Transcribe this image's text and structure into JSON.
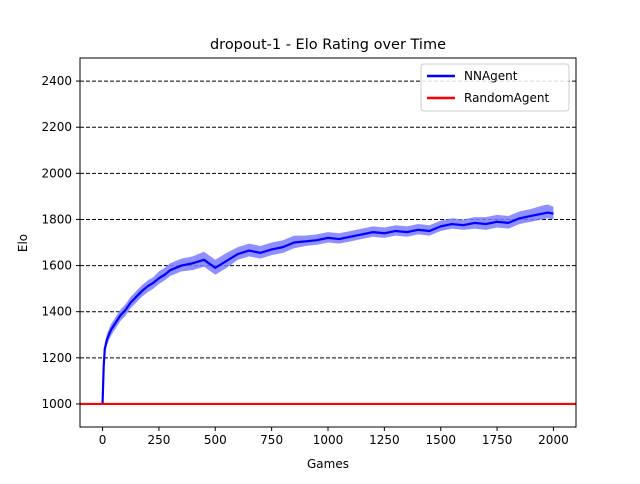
{
  "chart_data": {
    "type": "line",
    "title": "dropout-1 - Elo Rating over Time",
    "xlabel": "Games",
    "ylabel": "Elo",
    "xlim": [
      -100,
      2100
    ],
    "ylim": [
      900,
      2500
    ],
    "xticks": [
      0,
      250,
      500,
      750,
      1000,
      1250,
      1500,
      1750,
      2000
    ],
    "yticks": [
      1000,
      1200,
      1400,
      1600,
      1800,
      2000,
      2200,
      2400
    ],
    "grid": "horizontal dashed",
    "legend_position": "top-right",
    "series": [
      {
        "name": "NNAgent",
        "color": "#0000ff",
        "band_color": "#7b7bff",
        "x": [
          0,
          5,
          10,
          20,
          30,
          40,
          50,
          60,
          80,
          100,
          125,
          150,
          175,
          200,
          225,
          250,
          275,
          300,
          350,
          400,
          450,
          500,
          550,
          600,
          650,
          700,
          750,
          800,
          850,
          900,
          950,
          1000,
          1050,
          1100,
          1150,
          1200,
          1250,
          1300,
          1350,
          1400,
          1450,
          1500,
          1550,
          1600,
          1650,
          1700,
          1750,
          1800,
          1850,
          1900,
          1950,
          1975,
          2000
        ],
        "y": [
          1000,
          1160,
          1240,
          1280,
          1305,
          1325,
          1340,
          1355,
          1385,
          1405,
          1440,
          1465,
          1490,
          1510,
          1525,
          1545,
          1560,
          1580,
          1600,
          1610,
          1625,
          1590,
          1620,
          1650,
          1665,
          1655,
          1670,
          1680,
          1700,
          1705,
          1710,
          1720,
          1715,
          1725,
          1735,
          1745,
          1740,
          1750,
          1745,
          1755,
          1750,
          1770,
          1780,
          1775,
          1785,
          1780,
          1790,
          1785,
          1805,
          1815,
          1825,
          1830,
          1825
        ],
        "lower": [
          1000,
          1130,
          1215,
          1255,
          1280,
          1300,
          1315,
          1330,
          1360,
          1380,
          1415,
          1440,
          1465,
          1485,
          1500,
          1520,
          1535,
          1555,
          1575,
          1580,
          1595,
          1560,
          1590,
          1625,
          1640,
          1630,
          1645,
          1655,
          1675,
          1685,
          1690,
          1700,
          1695,
          1705,
          1715,
          1725,
          1720,
          1730,
          1725,
          1735,
          1730,
          1750,
          1760,
          1755,
          1760,
          1755,
          1765,
          1760,
          1780,
          1790,
          1800,
          1805,
          1800
        ],
        "upper": [
          1000,
          1190,
          1265,
          1305,
          1330,
          1350,
          1365,
          1380,
          1410,
          1430,
          1465,
          1490,
          1515,
          1535,
          1550,
          1575,
          1590,
          1610,
          1630,
          1640,
          1660,
          1625,
          1655,
          1680,
          1695,
          1685,
          1700,
          1710,
          1730,
          1730,
          1735,
          1745,
          1740,
          1750,
          1760,
          1770,
          1765,
          1775,
          1770,
          1780,
          1775,
          1795,
          1805,
          1800,
          1810,
          1810,
          1820,
          1815,
          1835,
          1845,
          1860,
          1865,
          1855
        ]
      },
      {
        "name": "RandomAgent",
        "color": "#ff0000",
        "x": [
          -100,
          2100
        ],
        "y": [
          1000,
          1000
        ]
      }
    ]
  }
}
